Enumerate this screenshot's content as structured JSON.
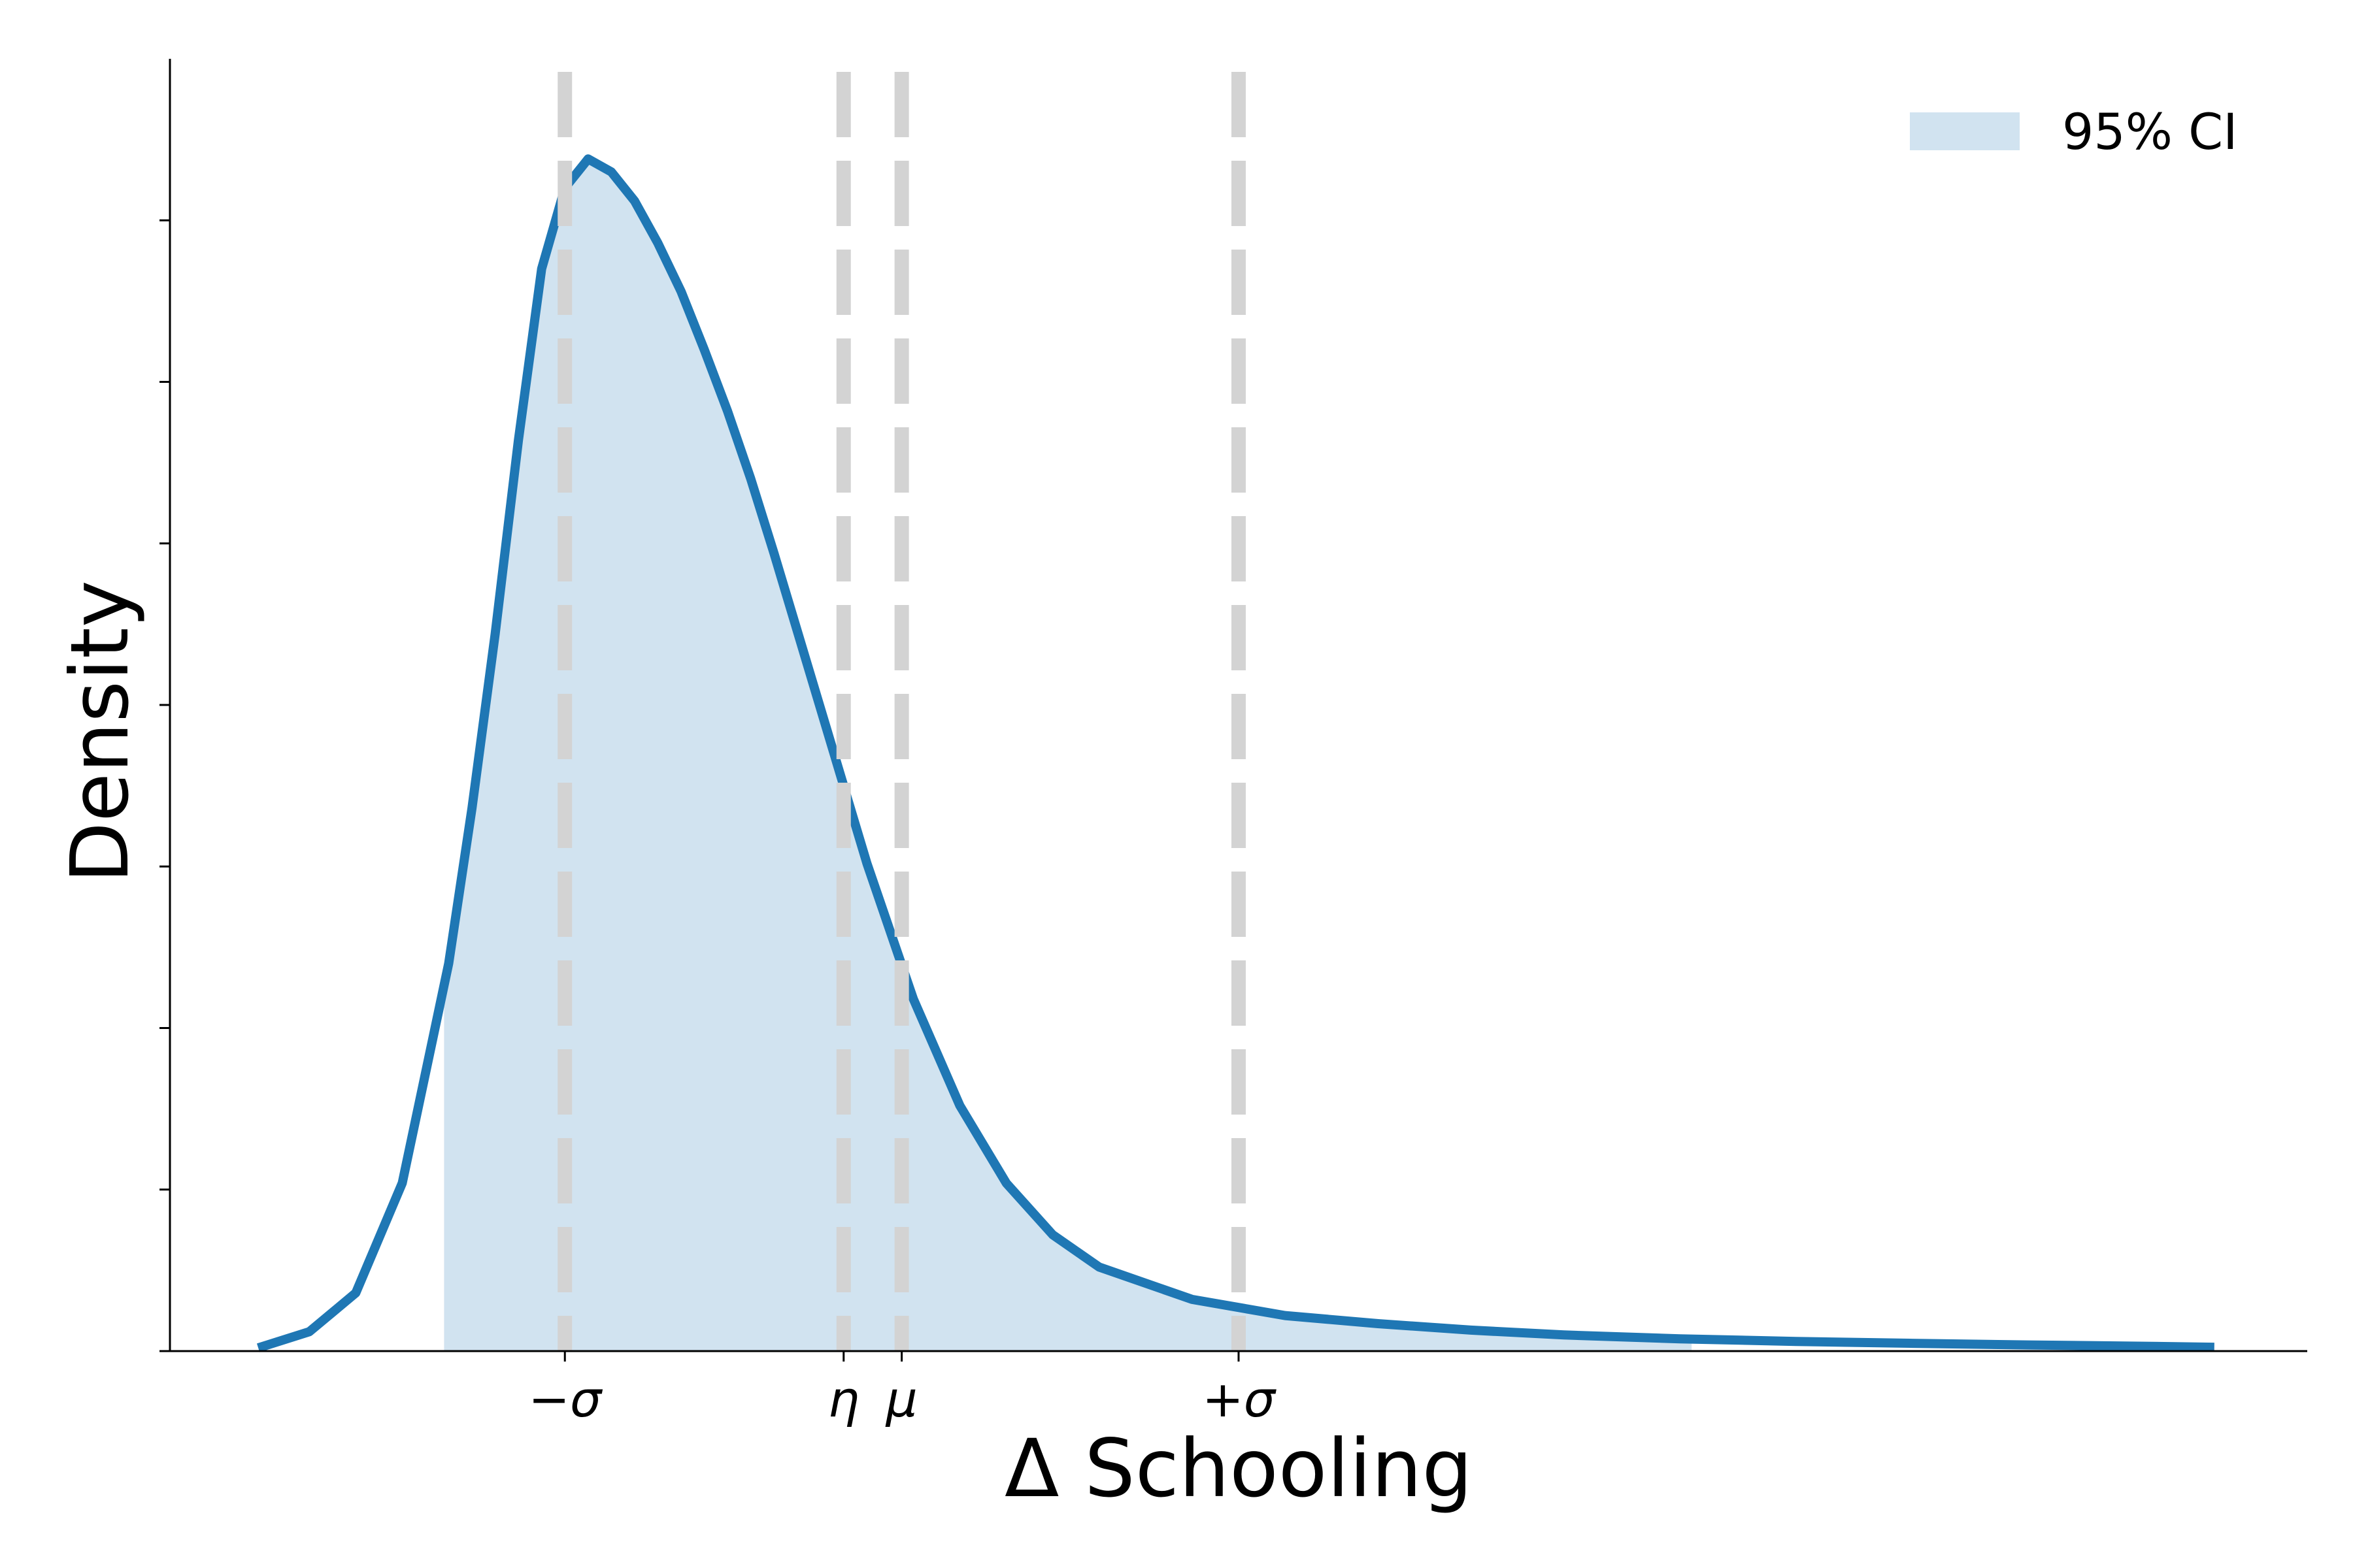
{
  "chart_data": {
    "type": "area",
    "xlabel": "Δ Schooling",
    "ylabel": "Density",
    "xlim": [
      -2.0,
      7.2
    ],
    "ylim": [
      0,
      0.4
    ],
    "y_tick_values": [
      0.05,
      0.1,
      0.15,
      0.2,
      0.25,
      0.3,
      0.35
    ],
    "y_tick_labels_shown": false,
    "grid": false,
    "legend": {
      "position": "top-right",
      "entries": [
        "95% CI"
      ]
    },
    "colors": {
      "curve": "#1f77b4",
      "ci_fill": "#d1e3f0",
      "reference_lines": "#d3d3d3"
    },
    "series": [
      {
        "name": "density",
        "x": [
          -1.62,
          -1.4,
          -1.2,
          -1.0,
          -0.8,
          -0.7,
          -0.6,
          -0.5,
          -0.4,
          -0.3,
          -0.2,
          -0.1,
          0.0,
          0.1,
          0.2,
          0.3,
          0.4,
          0.5,
          0.6,
          0.8,
          1.0,
          1.2,
          1.4,
          1.6,
          1.8,
          2.0,
          2.4,
          2.8,
          3.2,
          3.6,
          4.0,
          4.5,
          5.0,
          5.5,
          6.0,
          6.5,
          6.8
        ],
        "y": [
          0.001,
          0.006,
          0.018,
          0.052,
          0.12,
          0.168,
          0.222,
          0.282,
          0.335,
          0.36,
          0.369,
          0.365,
          0.356,
          0.343,
          0.328,
          0.31,
          0.291,
          0.27,
          0.247,
          0.199,
          0.151,
          0.109,
          0.076,
          0.052,
          0.036,
          0.026,
          0.016,
          0.011,
          0.0085,
          0.0065,
          0.005,
          0.0038,
          0.003,
          0.0024,
          0.0019,
          0.0015,
          0.0012
        ]
      }
    ],
    "confidence_interval": {
      "label": "95% CI",
      "x_low": -0.82,
      "x_high": 4.55
    },
    "reference_lines": [
      {
        "label": "−σ",
        "x": -0.3
      },
      {
        "label": "η",
        "x": 0.9
      },
      {
        "label": "μ",
        "x": 1.15
      },
      {
        "label": "+σ",
        "x": 2.6
      }
    ]
  }
}
